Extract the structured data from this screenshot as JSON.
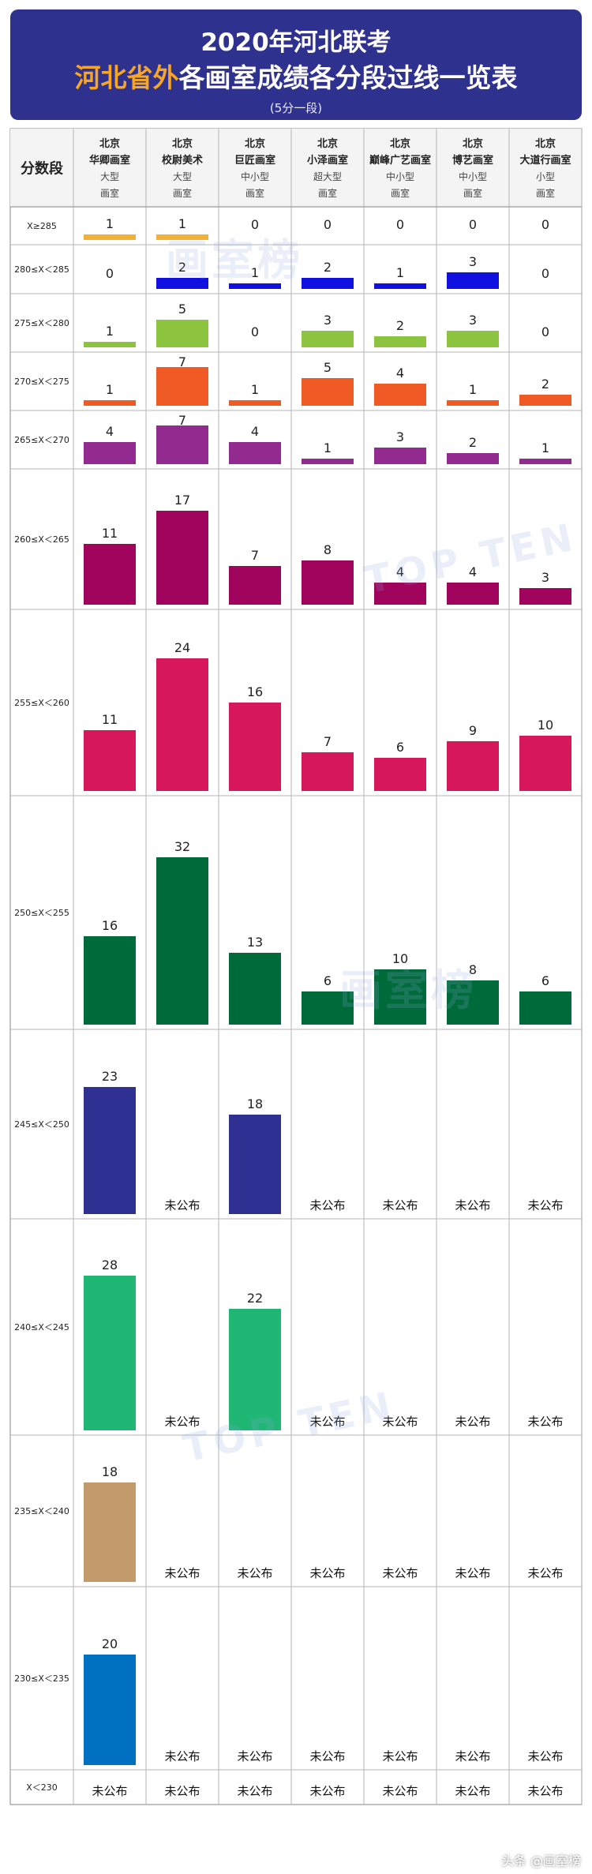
{
  "header": {
    "title_line1": "2020年河北联考",
    "title_highlight": "河北省外",
    "title_line2_rest": "各画室成绩各分段过线一览表",
    "subtitle": "(5分一段)"
  },
  "watermark": {
    "brand": "画室榜",
    "sub": "TOP TEN"
  },
  "footer": {
    "credit": "头条 @画室榜"
  },
  "chart_data": {
    "type": "bar",
    "row_header": "分数段",
    "not_published_label": "未公布",
    "columns": [
      {
        "line1": "北京",
        "line2": "华卿画室",
        "line3": "大型",
        "line4": "画室"
      },
      {
        "line1": "北京",
        "line2": "校尉美术",
        "line3": "大型",
        "line4": "画室"
      },
      {
        "line1": "北京",
        "line2": "巨匠画室",
        "line3": "中小型",
        "line4": "画室"
      },
      {
        "line1": "北京",
        "line2": "小泽画室",
        "line3": "超大型",
        "line4": "画室"
      },
      {
        "line1": "北京",
        "line2": "巅峰广艺画室",
        "line3": "中小型",
        "line4": "画室"
      },
      {
        "line1": "北京",
        "line2": "博艺画室",
        "line3": "中小型",
        "line4": "画室"
      },
      {
        "line1": "北京",
        "line2": "大道行画室",
        "line3": "小型",
        "line4": "画室"
      }
    ],
    "rows": [
      {
        "label": "X≥285",
        "color": "#f2b134",
        "values": [
          1,
          1,
          0,
          0,
          0,
          0,
          0
        ]
      },
      {
        "label": "280≤X＜285",
        "color": "#1010e0",
        "values": [
          0,
          2,
          1,
          2,
          1,
          3,
          0
        ]
      },
      {
        "label": "275≤X＜280",
        "color": "#8cc43f",
        "values": [
          1,
          5,
          0,
          3,
          2,
          3,
          0
        ]
      },
      {
        "label": "270≤X＜275",
        "color": "#f05a24",
        "values": [
          1,
          7,
          1,
          5,
          4,
          1,
          2
        ]
      },
      {
        "label": "265≤X＜270",
        "color": "#922a90",
        "values": [
          4,
          7,
          4,
          1,
          3,
          2,
          1
        ]
      },
      {
        "label": "260≤X＜265",
        "color": "#a0045c",
        "values": [
          11,
          17,
          7,
          8,
          4,
          4,
          3
        ]
      },
      {
        "label": "255≤X＜260",
        "color": "#d6185a",
        "values": [
          11,
          24,
          16,
          7,
          6,
          9,
          10
        ]
      },
      {
        "label": "250≤X＜255",
        "color": "#006b3a",
        "values": [
          16,
          32,
          13,
          6,
          10,
          8,
          6
        ]
      },
      {
        "label": "245≤X＜250",
        "color": "#2e3192",
        "values": [
          23,
          null,
          18,
          null,
          null,
          null,
          null
        ]
      },
      {
        "label": "240≤X＜245",
        "color": "#20b673",
        "values": [
          28,
          null,
          22,
          null,
          null,
          null,
          null
        ]
      },
      {
        "label": "235≤X＜240",
        "color": "#c39a6b",
        "values": [
          18,
          null,
          null,
          null,
          null,
          null,
          null
        ]
      },
      {
        "label": "230≤X＜235",
        "color": "#0070c0",
        "values": [
          20,
          null,
          null,
          null,
          null,
          null,
          null
        ]
      },
      {
        "label": "X＜230",
        "color": "#444444",
        "values": [
          null,
          null,
          null,
          null,
          null,
          null,
          null
        ]
      }
    ]
  }
}
